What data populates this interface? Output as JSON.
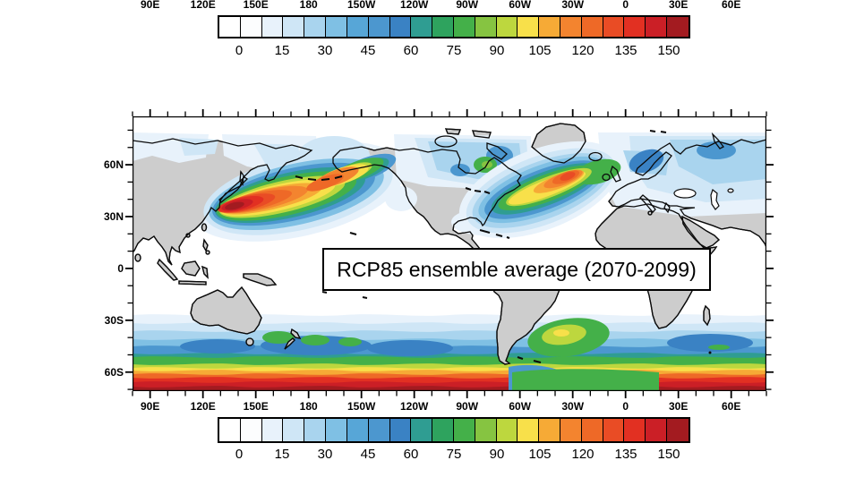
{
  "figure": {
    "top_axis": {
      "labels": [
        "90E",
        "120E",
        "150E",
        "180",
        "150W",
        "120W",
        "90W",
        "60W",
        "30W",
        "0",
        "30E",
        "60E"
      ]
    },
    "bottom_axis": {
      "labels": [
        "90E",
        "120E",
        "150E",
        "180",
        "150W",
        "120W",
        "90W",
        "60W",
        "30W",
        "0",
        "30E",
        "60E"
      ]
    },
    "lat_axis": {
      "labels": [
        "60N",
        "30N",
        "0",
        "30S",
        "60S"
      ]
    },
    "colorbar": {
      "tick_labels": [
        "0",
        "15",
        "30",
        "45",
        "60",
        "75",
        "90",
        "105",
        "120",
        "135",
        "150"
      ],
      "colors": [
        "#ffffff",
        "#fcfdfe",
        "#e8f2fb",
        "#cfe6f6",
        "#a9d4ee",
        "#7fc0e4",
        "#57a6d7",
        "#4c97cf",
        "#3a82c4",
        "#2f9d92",
        "#2ea35e",
        "#44b049",
        "#86c441",
        "#bdd73e",
        "#f8e04a",
        "#f6aa36",
        "#f3842f",
        "#ee6927",
        "#e94c25",
        "#e23022",
        "#cb1f26",
        "#a31b20"
      ]
    },
    "map": {
      "title_box": "RCP85 ensemble average (2070-2099)",
      "land_color": "#cdcdcd",
      "coast_color": "#0b0b0b",
      "ocean_color": "#ffffff"
    }
  },
  "chart_data": {
    "type": "filled_contour_map",
    "title": "RCP85 ensemble average (2070-2099)",
    "projection": "cylindrical equidistant, 360 deg span starting at 80E (centered ~100W)",
    "lon_tick_labels": [
      "90E",
      "120E",
      "150E",
      "180",
      "150W",
      "120W",
      "90W",
      "60W",
      "30W",
      "0",
      "30E",
      "60E"
    ],
    "lat_tick_labels": [
      "60N",
      "30N",
      "0",
      "30S",
      "60S"
    ],
    "lat_range_shown": [
      "88N",
      "71S"
    ],
    "contour_min": 0,
    "contour_max": 150,
    "contour_interval": 7.5,
    "colorbar_tick_values": [
      0,
      15,
      30,
      45,
      60,
      75,
      90,
      105,
      120,
      135,
      150
    ],
    "palette_n_boxes": 22,
    "grid": false,
    "legend_position": "horizontal colorbar above and below map",
    "features": [
      {
        "name": "North Pacific storm track",
        "location": "30-55N, 125E-150W, core near Japan ~37N 145E",
        "peak_value": 150
      },
      {
        "name": "North Atlantic storm track",
        "location": "35-60N, 75W-0, core south of Iceland ~55N 35W",
        "peak_value": 115
      },
      {
        "name": "Labrador / NE Canada maximum",
        "location": "~55N 75W",
        "peak_value": 70
      },
      {
        "name": "Arctic / subpolar light band",
        "location": "55-75N Siberia, Canada, Europe",
        "peak_value": 20
      },
      {
        "name": "Tropics",
        "location": "20N-25S",
        "peak_value": 5
      },
      {
        "name": "South Pacific / Tasman maxima",
        "location": "~45S, 155E-150W near New Zealand",
        "peak_value": 75
      },
      {
        "name": "South Atlantic maximum",
        "location": "~45S 40W",
        "peak_value": 95
      },
      {
        "name": "Southern Ocean circumpolar band",
        "location": "55-70S, green-yellow-orange-red toward map edge",
        "peak_value": 150
      },
      {
        "name": "Circumpolar band interruption",
        "location": "60-70S, 65W-10W (weaker, green)",
        "peak_value": 75
      }
    ]
  }
}
